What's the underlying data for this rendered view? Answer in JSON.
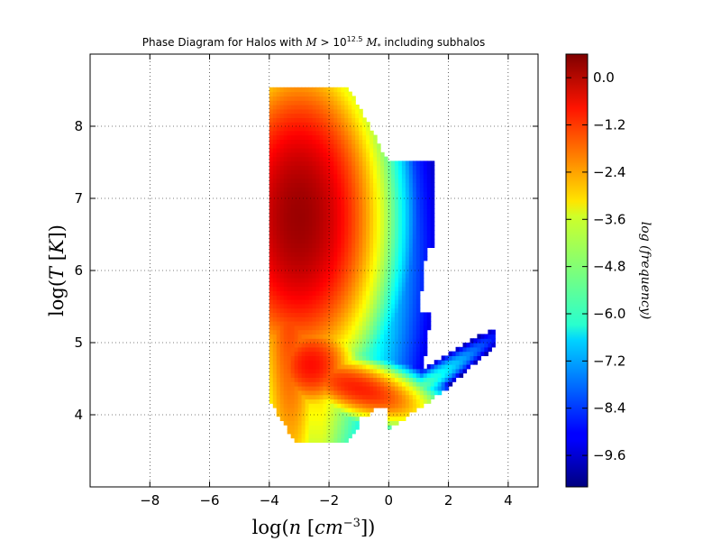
{
  "chart_data": {
    "type": "heatmap",
    "title": "Phase Diagram for Halos with M > 10^12.5 M_* including subhalos",
    "xlabel": "log(n [cm^-3])",
    "ylabel": "log(T [K])",
    "xlim": [
      -10,
      5
    ],
    "ylim": [
      3,
      9
    ],
    "xticks": [
      "−8",
      "−6",
      "−4",
      "−2",
      "0",
      "2",
      "4"
    ],
    "xtick_values": [
      -8,
      -6,
      -4,
      -2,
      0,
      2,
      4
    ],
    "yticks": [
      "4",
      "5",
      "6",
      "7",
      "8"
    ],
    "ytick_values": [
      4,
      5,
      6,
      7,
      8
    ],
    "grid": true,
    "colorbar": {
      "label": "log (frequency)",
      "range": [
        -10.4,
        0.6
      ],
      "ticks": [
        "0.0",
        "−1.2",
        "−2.4",
        "−3.6",
        "−4.8",
        "−6.0",
        "−7.2",
        "−8.4",
        "−9.6"
      ],
      "tick_values": [
        0.0,
        -1.2,
        -2.4,
        -3.6,
        -4.8,
        -6.0,
        -7.2,
        -8.4,
        -9.6
      ],
      "colormap": "jet"
    },
    "peaks": [
      {
        "x": -3.0,
        "y": 6.75,
        "value": 0.3
      },
      {
        "x": -2.6,
        "y": 4.7,
        "value": -0.9
      },
      {
        "x": -1.2,
        "y": 4.3,
        "value": -1.1
      }
    ]
  }
}
